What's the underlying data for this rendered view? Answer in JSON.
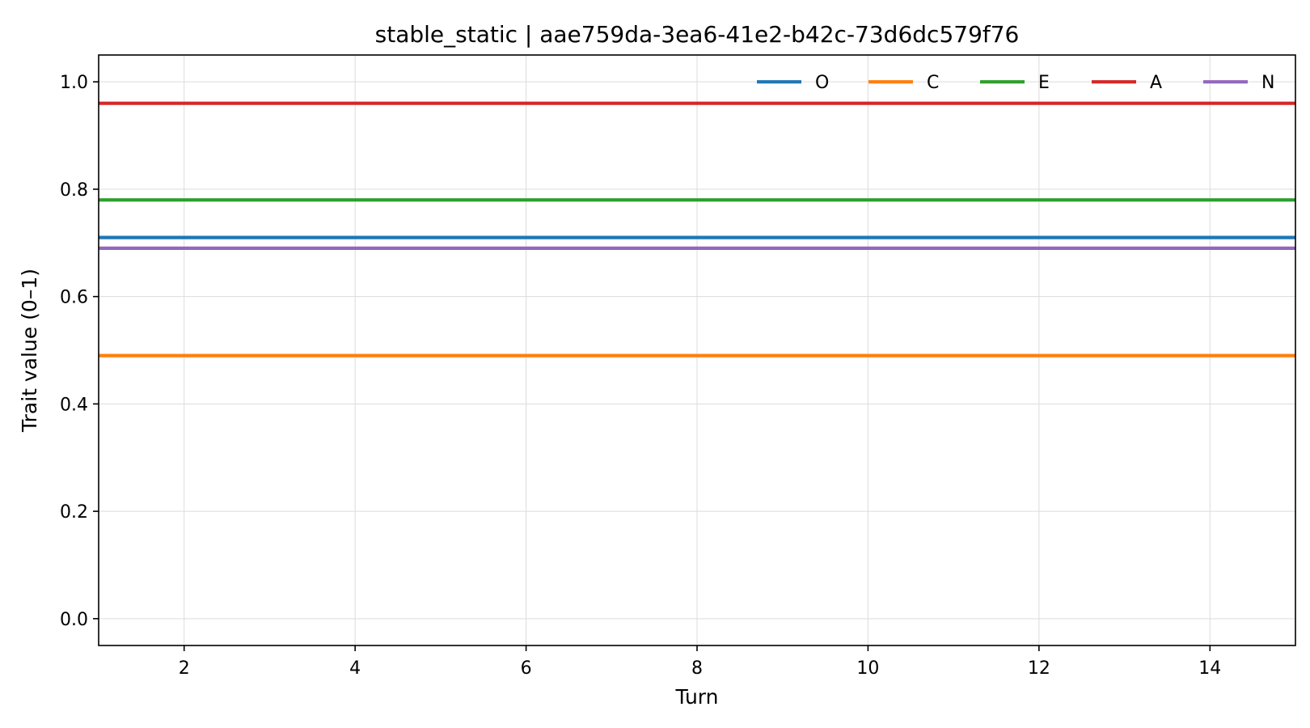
{
  "chart_data": {
    "type": "line",
    "title": "stable_static | aae759da-3ea6-41e2-b42c-73d6dc579f76",
    "xlabel": "Turn",
    "ylabel": "Trait value (0–1)",
    "xlim": [
      1,
      15
    ],
    "ylim": [
      -0.05,
      1.05
    ],
    "xticks": [
      2,
      4,
      6,
      8,
      10,
      12,
      14
    ],
    "xtick_labels": [
      "2",
      "4",
      "6",
      "8",
      "10",
      "12",
      "14"
    ],
    "yticks": [
      0.0,
      0.2,
      0.4,
      0.6,
      0.8,
      1.0
    ],
    "ytick_labels": [
      "0.0",
      "0.2",
      "0.4",
      "0.6",
      "0.8",
      "1.0"
    ],
    "grid": true,
    "legend_position": "top-right",
    "x": [
      1,
      2,
      3,
      4,
      5,
      6,
      7,
      8,
      9,
      10,
      11,
      12,
      13,
      14,
      15
    ],
    "series": [
      {
        "name": "O",
        "color": "#1f77b4",
        "values": [
          0.71,
          0.71,
          0.71,
          0.71,
          0.71,
          0.71,
          0.71,
          0.71,
          0.71,
          0.71,
          0.71,
          0.71,
          0.71,
          0.71,
          0.71
        ]
      },
      {
        "name": "C",
        "color": "#ff7f0e",
        "values": [
          0.49,
          0.49,
          0.49,
          0.49,
          0.49,
          0.49,
          0.49,
          0.49,
          0.49,
          0.49,
          0.49,
          0.49,
          0.49,
          0.49,
          0.49
        ]
      },
      {
        "name": "E",
        "color": "#2ca02c",
        "values": [
          0.78,
          0.78,
          0.78,
          0.78,
          0.78,
          0.78,
          0.78,
          0.78,
          0.78,
          0.78,
          0.78,
          0.78,
          0.78,
          0.78,
          0.78
        ]
      },
      {
        "name": "A",
        "color": "#d62728",
        "values": [
          0.96,
          0.96,
          0.96,
          0.96,
          0.96,
          0.96,
          0.96,
          0.96,
          0.96,
          0.96,
          0.96,
          0.96,
          0.96,
          0.96,
          0.96
        ]
      },
      {
        "name": "N",
        "color": "#9467bd",
        "values": [
          0.69,
          0.69,
          0.69,
          0.69,
          0.69,
          0.69,
          0.69,
          0.69,
          0.69,
          0.69,
          0.69,
          0.69,
          0.69,
          0.69,
          0.69
        ]
      }
    ]
  }
}
